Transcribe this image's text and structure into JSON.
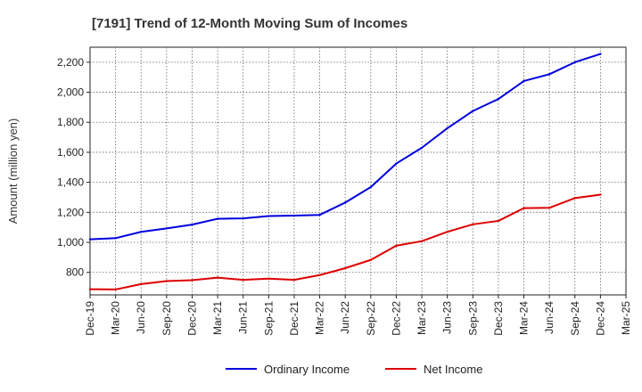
{
  "chart_data": {
    "type": "line",
    "title": "[7191]  Trend of 12-Month Moving Sum of Incomes",
    "xlabel": "",
    "ylabel": "Amount (million yen)",
    "ylim": [
      650,
      2300
    ],
    "yticks": [
      800,
      1000,
      1200,
      1400,
      1600,
      1800,
      2000,
      2200
    ],
    "ytick_labels": [
      "800",
      "1,000",
      "1,200",
      "1,400",
      "1,600",
      "1,800",
      "2,000",
      "2,200"
    ],
    "xtick_labels": [
      "Dec-19",
      "Mar-20",
      "Jun-20",
      "Sep-20",
      "Dec-20",
      "Mar-21",
      "Jun-21",
      "Sep-21",
      "Dec-21",
      "Mar-22",
      "Jun-22",
      "Sep-22",
      "Dec-22",
      "Mar-23",
      "Jun-23",
      "Sep-23",
      "Dec-23",
      "Mar-24",
      "Jun-24",
      "Sep-24",
      "Dec-24",
      "Mar-25"
    ],
    "categories": [
      "Dec-19",
      "Mar-20",
      "Jun-20",
      "Sep-20",
      "Dec-20",
      "Mar-21",
      "Jun-21",
      "Sep-21",
      "Dec-21",
      "Mar-22",
      "Jun-22",
      "Sep-22",
      "Dec-22",
      "Mar-23",
      "Jun-23",
      "Sep-23",
      "Dec-23",
      "Mar-24",
      "Jun-24",
      "Sep-24",
      "Dec-24"
    ],
    "grid": true,
    "legend_position": "bottom-center",
    "series": [
      {
        "name": "Ordinary Income",
        "color": "#0000dd",
        "values": [
          1020,
          1028,
          1070,
          1093,
          1118,
          1157,
          1160,
          1175,
          1178,
          1183,
          1265,
          1368,
          1525,
          1630,
          1760,
          1875,
          1955,
          2075,
          2120,
          2200,
          2255
        ]
      },
      {
        "name": "Net Income",
        "color": "#dd0000",
        "values": [
          688,
          686,
          722,
          742,
          748,
          765,
          750,
          758,
          750,
          782,
          828,
          883,
          978,
          1008,
          1070,
          1120,
          1143,
          1228,
          1230,
          1295,
          1318
        ]
      }
    ]
  }
}
